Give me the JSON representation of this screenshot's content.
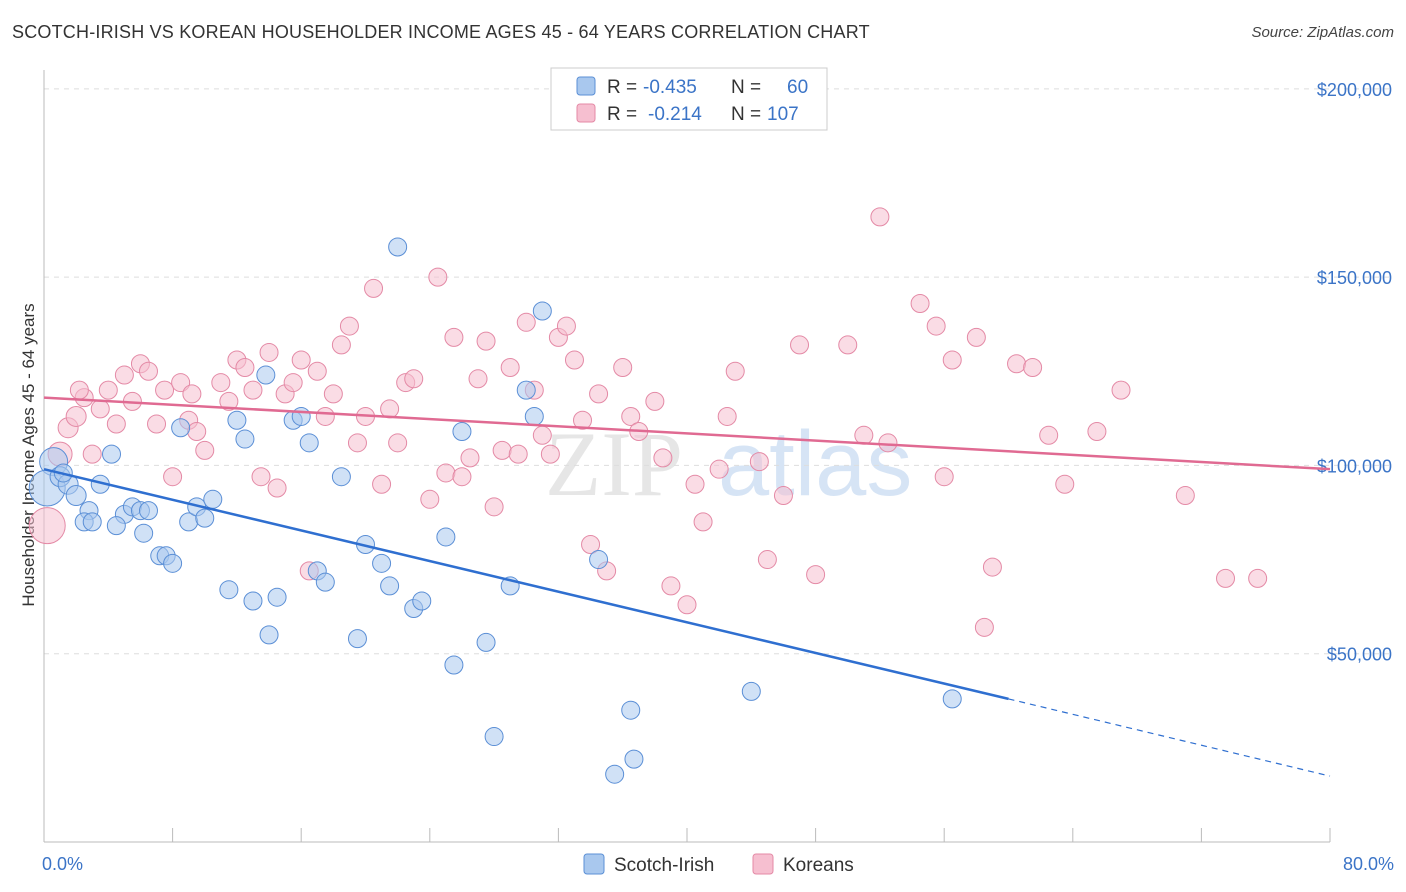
{
  "header": {
    "title": "SCOTCH-IRISH VS KOREAN HOUSEHOLDER INCOME AGES 45 - 64 YEARS CORRELATION CHART",
    "source": "Source: ZipAtlas.com"
  },
  "watermark": {
    "zip": "ZIP",
    "atlas": "atlas"
  },
  "colors": {
    "scotch_fill": "#a9c8ee",
    "scotch_stroke": "#5b8fd6",
    "scotch_line": "#2f6fd0",
    "korean_fill": "#f6bfd0",
    "korean_stroke": "#e48aa6",
    "korean_line": "#e06a92",
    "axis_label": "#3b74c7",
    "grid": "#dddddd"
  },
  "chart_data": {
    "type": "scatter",
    "title": "SCOTCH-IRISH VS KOREAN HOUSEHOLDER INCOME AGES 45 - 64 YEARS CORRELATION CHART",
    "xlabel": "",
    "ylabel": "Householder Income Ages 45 - 64 years",
    "xlim": [
      0,
      80
    ],
    "ylim": [
      0,
      205000
    ],
    "x_tick_labels": [
      "0.0%",
      "80.0%"
    ],
    "y_ticks": [
      50000,
      100000,
      150000,
      200000
    ],
    "y_tick_labels": [
      "$50,000",
      "$100,000",
      "$150,000",
      "$200,000"
    ],
    "grid": true,
    "legend": {
      "placement": "top-center",
      "entries": [
        {
          "r_label": "R =",
          "r_value": "-0.435",
          "n_label": "N =",
          "n_value": "60"
        },
        {
          "r_label": "R =",
          "r_value": "-0.214",
          "n_label": "N =",
          "n_value": "107"
        }
      ]
    },
    "bottom_legend": [
      "Scotch-Irish",
      "Koreans"
    ],
    "series": [
      {
        "name": "Scotch-Irish",
        "trend": {
          "x0": 0,
          "y0": 99000,
          "x1": 60,
          "y1": 38000,
          "dash_to_x": 80,
          "dash_to_y": 17500
        },
        "points": [
          [
            0.6,
            101000,
            14
          ],
          [
            0.2,
            94000,
            18
          ],
          [
            1.0,
            97000,
            10
          ],
          [
            1.5,
            95000,
            10
          ],
          [
            2.0,
            92000,
            10
          ],
          [
            2.8,
            88000,
            9
          ],
          [
            3.5,
            95000,
            9
          ],
          [
            4.2,
            103000,
            9
          ],
          [
            5.0,
            87000,
            9
          ],
          [
            5.5,
            89000,
            9
          ],
          [
            6.0,
            88000,
            9
          ],
          [
            6.5,
            88000,
            9
          ],
          [
            7.2,
            76000,
            9
          ],
          [
            7.6,
            76000,
            9
          ],
          [
            8.0,
            74000,
            9
          ],
          [
            8.5,
            110000,
            9
          ],
          [
            9.0,
            85000,
            9
          ],
          [
            9.5,
            89000,
            9
          ],
          [
            10.0,
            86000,
            9
          ],
          [
            11.5,
            67000,
            9
          ],
          [
            12.5,
            107000,
            9
          ],
          [
            13.0,
            64000,
            9
          ],
          [
            13.8,
            124000,
            9
          ],
          [
            14.0,
            55000,
            9
          ],
          [
            14.5,
            65000,
            9
          ],
          [
            15.5,
            112000,
            9
          ],
          [
            16.0,
            113000,
            9
          ],
          [
            16.5,
            106000,
            9
          ],
          [
            17.0,
            72000,
            9
          ],
          [
            17.5,
            69000,
            9
          ],
          [
            18.5,
            97000,
            9
          ],
          [
            19.5,
            54000,
            9
          ],
          [
            20.0,
            79000,
            9
          ],
          [
            21.0,
            74000,
            9
          ],
          [
            21.5,
            68000,
            9
          ],
          [
            22.0,
            158000,
            9
          ],
          [
            23.0,
            62000,
            9
          ],
          [
            23.5,
            64000,
            9
          ],
          [
            25.0,
            81000,
            9
          ],
          [
            25.5,
            47000,
            9
          ],
          [
            26.0,
            109000,
            9
          ],
          [
            27.5,
            53000,
            9
          ],
          [
            28.0,
            28000,
            9
          ],
          [
            29.0,
            68000,
            9
          ],
          [
            30.0,
            120000,
            9
          ],
          [
            30.5,
            113000,
            9
          ],
          [
            31.0,
            141000,
            9
          ],
          [
            34.5,
            75000,
            9
          ],
          [
            35.5,
            18000,
            9
          ],
          [
            36.5,
            35000,
            9
          ],
          [
            36.7,
            22000,
            9
          ],
          [
            44.0,
            40000,
            9
          ],
          [
            56.5,
            38000,
            9
          ],
          [
            2.5,
            85000,
            9
          ],
          [
            4.5,
            84000,
            9
          ],
          [
            1.2,
            98000,
            9
          ],
          [
            10.5,
            91000,
            9
          ],
          [
            12.0,
            112000,
            9
          ],
          [
            3.0,
            85000,
            9
          ],
          [
            6.2,
            82000,
            9
          ]
        ]
      },
      {
        "name": "Koreans",
        "trend": {
          "x0": 0,
          "y0": 118000,
          "x1": 80,
          "y1": 99000
        },
        "points": [
          [
            0.2,
            84000,
            18
          ],
          [
            1.0,
            103000,
            12
          ],
          [
            1.5,
            110000,
            10
          ],
          [
            2.0,
            113000,
            10
          ],
          [
            2.5,
            118000,
            9
          ],
          [
            3.0,
            103000,
            9
          ],
          [
            3.5,
            115000,
            9
          ],
          [
            4.0,
            120000,
            9
          ],
          [
            4.5,
            111000,
            9
          ],
          [
            5.0,
            124000,
            9
          ],
          [
            5.5,
            117000,
            9
          ],
          [
            6.0,
            127000,
            9
          ],
          [
            6.5,
            125000,
            9
          ],
          [
            7.0,
            111000,
            9
          ],
          [
            7.5,
            120000,
            9
          ],
          [
            8.0,
            97000,
            9
          ],
          [
            8.5,
            122000,
            9
          ],
          [
            9.0,
            112000,
            9
          ],
          [
            9.5,
            109000,
            9
          ],
          [
            10.0,
            104000,
            9
          ],
          [
            11.0,
            122000,
            9
          ],
          [
            11.5,
            117000,
            9
          ],
          [
            12.0,
            128000,
            9
          ],
          [
            12.5,
            126000,
            9
          ],
          [
            13.0,
            120000,
            9
          ],
          [
            14.0,
            130000,
            9
          ],
          [
            14.5,
            94000,
            9
          ],
          [
            15.0,
            119000,
            9
          ],
          [
            15.5,
            122000,
            9
          ],
          [
            16.0,
            128000,
            9
          ],
          [
            16.5,
            72000,
            9
          ],
          [
            17.0,
            125000,
            9
          ],
          [
            17.5,
            113000,
            9
          ],
          [
            18.0,
            119000,
            9
          ],
          [
            18.5,
            132000,
            9
          ],
          [
            19.0,
            137000,
            9
          ],
          [
            19.5,
            106000,
            9
          ],
          [
            20.0,
            113000,
            9
          ],
          [
            20.5,
            147000,
            9
          ],
          [
            21.0,
            95000,
            9
          ],
          [
            21.5,
            115000,
            9
          ],
          [
            22.0,
            106000,
            9
          ],
          [
            22.5,
            122000,
            9
          ],
          [
            23.0,
            123000,
            9
          ],
          [
            24.0,
            91000,
            9
          ],
          [
            24.5,
            150000,
            9
          ],
          [
            25.0,
            98000,
            9
          ],
          [
            25.5,
            134000,
            9
          ],
          [
            26.0,
            97000,
            9
          ],
          [
            26.5,
            102000,
            9
          ],
          [
            27.0,
            123000,
            9
          ],
          [
            27.5,
            133000,
            9
          ],
          [
            28.0,
            89000,
            9
          ],
          [
            28.5,
            104000,
            9
          ],
          [
            29.0,
            126000,
            9
          ],
          [
            29.5,
            103000,
            9
          ],
          [
            30.0,
            138000,
            9
          ],
          [
            30.5,
            120000,
            9
          ],
          [
            31.0,
            108000,
            9
          ],
          [
            31.5,
            103000,
            9
          ],
          [
            32.0,
            134000,
            9
          ],
          [
            32.5,
            137000,
            9
          ],
          [
            33.0,
            128000,
            9
          ],
          [
            33.5,
            112000,
            9
          ],
          [
            34.0,
            79000,
            9
          ],
          [
            34.5,
            119000,
            9
          ],
          [
            35.0,
            72000,
            9
          ],
          [
            36.0,
            126000,
            9
          ],
          [
            36.5,
            113000,
            9
          ],
          [
            37.0,
            109000,
            9
          ],
          [
            38.0,
            117000,
            9
          ],
          [
            38.5,
            102000,
            9
          ],
          [
            39.0,
            68000,
            9
          ],
          [
            40.0,
            63000,
            9
          ],
          [
            40.5,
            95000,
            9
          ],
          [
            41.0,
            85000,
            9
          ],
          [
            42.0,
            99000,
            9
          ],
          [
            42.5,
            113000,
            9
          ],
          [
            43.0,
            125000,
            9
          ],
          [
            44.5,
            101000,
            9
          ],
          [
            45.0,
            75000,
            9
          ],
          [
            46.0,
            92000,
            9
          ],
          [
            47.0,
            132000,
            9
          ],
          [
            48.0,
            71000,
            9
          ],
          [
            50.0,
            132000,
            9
          ],
          [
            51.0,
            108000,
            9
          ],
          [
            52.0,
            166000,
            9
          ],
          [
            52.5,
            106000,
            9
          ],
          [
            54.5,
            143000,
            9
          ],
          [
            55.5,
            137000,
            9
          ],
          [
            56.0,
            97000,
            9
          ],
          [
            56.5,
            128000,
            9
          ],
          [
            58.0,
            134000,
            9
          ],
          [
            58.5,
            57000,
            9
          ],
          [
            59.0,
            73000,
            9
          ],
          [
            60.5,
            127000,
            9
          ],
          [
            61.5,
            126000,
            9
          ],
          [
            62.5,
            108000,
            9
          ],
          [
            63.5,
            95000,
            9
          ],
          [
            65.5,
            109000,
            9
          ],
          [
            67.0,
            120000,
            9
          ],
          [
            71.0,
            92000,
            9
          ],
          [
            73.5,
            70000,
            9
          ],
          [
            75.5,
            70000,
            9
          ],
          [
            2.2,
            120000,
            9
          ],
          [
            9.2,
            119000,
            9
          ],
          [
            13.5,
            97000,
            9
          ]
        ]
      }
    ]
  }
}
